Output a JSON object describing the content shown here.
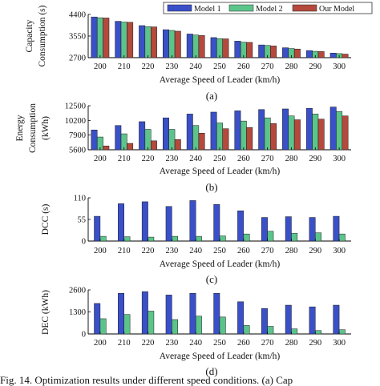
{
  "legend": {
    "items": [
      {
        "label": "Model 1",
        "color": "#3a50c8"
      },
      {
        "label": "Model 2",
        "color": "#5cc48a"
      },
      {
        "label": "Our Model",
        "color": "#b4493c"
      }
    ]
  },
  "caption": "Fig. 14.   Optimization results under different speed conditions. (a) Cap",
  "chart_data": [
    {
      "type": "bar",
      "panel_label": "(a)",
      "xlabel": "Average Speed of Leader (km/h)",
      "ylabel": [
        "Capacity",
        "Consumption (s)"
      ],
      "ylim": [
        2700,
        4400
      ],
      "yticks": [
        "2700",
        "3550",
        "4400"
      ],
      "ytick_values": [
        2700,
        3550,
        4400
      ],
      "categories": [
        "200",
        "210",
        "220",
        "230",
        "240",
        "250",
        "260",
        "270",
        "280",
        "290",
        "300"
      ],
      "series": [
        {
          "name": "Model 1",
          "color": "#3a50c8",
          "values": [
            4300,
            4130,
            3960,
            3800,
            3630,
            3490,
            3350,
            3200,
            3090,
            2980,
            2880
          ]
        },
        {
          "name": "Model 2",
          "color": "#5cc48a",
          "values": [
            4270,
            4100,
            3920,
            3770,
            3590,
            3450,
            3310,
            3180,
            3060,
            2950,
            2860
          ]
        },
        {
          "name": "Our Model",
          "color": "#b4493c",
          "values": [
            4260,
            4090,
            3910,
            3740,
            3570,
            3440,
            3300,
            3160,
            3040,
            2940,
            2840
          ]
        }
      ]
    },
    {
      "type": "bar",
      "panel_label": "(b)",
      "xlabel": "Average Speed of Leader (km/h)",
      "ylabel": [
        "Energy",
        "Consumption",
        "(kWh)"
      ],
      "ylim": [
        5600,
        12500
      ],
      "yticks": [
        "5600",
        "7900",
        "10200",
        "12500"
      ],
      "ytick_values": [
        5600,
        7900,
        10200,
        12500
      ],
      "categories": [
        "200",
        "210",
        "220",
        "230",
        "240",
        "250",
        "260",
        "270",
        "280",
        "290",
        "300"
      ],
      "series": [
        {
          "name": "Model 1",
          "color": "#3a50c8",
          "values": [
            8700,
            9400,
            10000,
            10600,
            11200,
            11500,
            11700,
            11900,
            12000,
            12100,
            12300
          ]
        },
        {
          "name": "Model 2",
          "color": "#5cc48a",
          "values": [
            7600,
            8100,
            8800,
            8800,
            9400,
            9800,
            10100,
            10600,
            10900,
            11200,
            11600
          ]
        },
        {
          "name": "Our Model",
          "color": "#b4493c",
          "values": [
            6200,
            6600,
            7000,
            7200,
            8200,
            8900,
            9100,
            9700,
            10300,
            10400,
            10900
          ]
        }
      ]
    },
    {
      "type": "bar",
      "panel_label": "(c)",
      "xlabel": "Average Speed of Leader (km/h)",
      "ylabel": [
        "DCC (s)"
      ],
      "ylim": [
        0,
        110
      ],
      "yticks": [
        "0",
        "55",
        "110"
      ],
      "ytick_values": [
        0,
        55,
        110
      ],
      "categories": [
        "200",
        "210",
        "220",
        "230",
        "240",
        "250",
        "260",
        "270",
        "280",
        "290",
        "300"
      ],
      "series": [
        {
          "name": "Model 1",
          "color": "#3a50c8",
          "values": [
            63,
            95,
            100,
            88,
            103,
            93,
            77,
            60,
            62,
            60,
            63
          ]
        },
        {
          "name": "Model 2",
          "color": "#5cc48a",
          "values": [
            12,
            11,
            10,
            12,
            12,
            13,
            18,
            25,
            20,
            21,
            18
          ]
        }
      ]
    },
    {
      "type": "bar",
      "panel_label": "(d)",
      "xlabel": "Average Speed of Leader (km/h)",
      "ylabel": [
        "DEC (kWh)"
      ],
      "ylim": [
        0,
        2600
      ],
      "yticks": [
        "0",
        "1300",
        "2600"
      ],
      "ytick_values": [
        0,
        1300,
        2600
      ],
      "categories": [
        "200",
        "210",
        "220",
        "230",
        "240",
        "250",
        "260",
        "270",
        "280",
        "290",
        "300"
      ],
      "series": [
        {
          "name": "Model 1",
          "color": "#3a50c8",
          "values": [
            1800,
            2400,
            2500,
            2300,
            2400,
            2400,
            1900,
            1500,
            1700,
            1600,
            1700
          ]
        },
        {
          "name": "Model 2",
          "color": "#5cc48a",
          "values": [
            900,
            1150,
            1350,
            850,
            1050,
            1000,
            500,
            450,
            300,
            200,
            250
          ]
        }
      ]
    }
  ]
}
